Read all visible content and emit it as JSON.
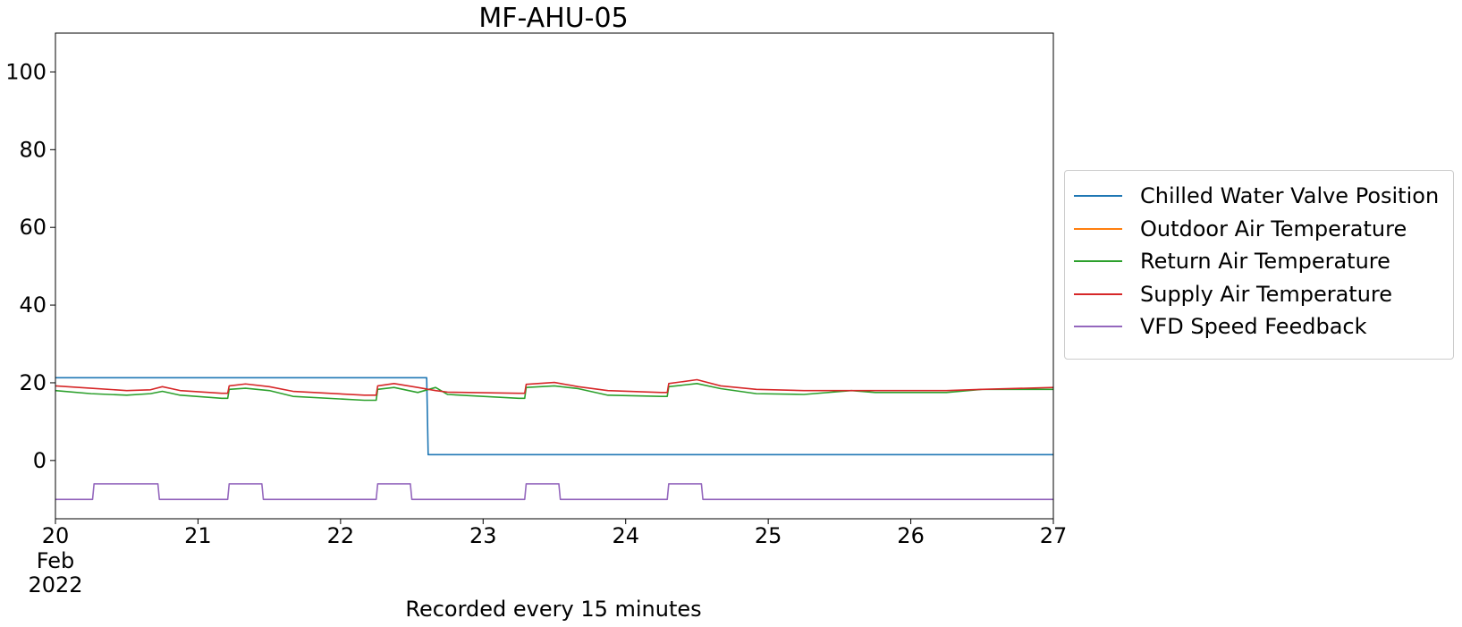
{
  "chart_data": {
    "type": "line",
    "title": "MF-AHU-05",
    "xlabel": "Recorded every 15 minutes",
    "ylabel": "",
    "x_range": [
      "2022-02-20",
      "2022-02-27"
    ],
    "ylim": [
      -15,
      110
    ],
    "x_ticks": [
      {
        "label": "20",
        "date": "2022-02-20",
        "sublabels": [
          "Feb",
          "2022"
        ]
      },
      {
        "label": "21",
        "date": "2022-02-21"
      },
      {
        "label": "22",
        "date": "2022-02-22"
      },
      {
        "label": "23",
        "date": "2022-02-23"
      },
      {
        "label": "24",
        "date": "2022-02-24"
      },
      {
        "label": "25",
        "date": "2022-02-25"
      },
      {
        "label": "26",
        "date": "2022-02-26"
      },
      {
        "label": "27",
        "date": "2022-02-27"
      }
    ],
    "y_ticks": [
      0,
      20,
      40,
      60,
      80,
      100
    ],
    "grid": false,
    "legend_position": "right-outside",
    "series": [
      {
        "name": "Chilled Water Valve Position",
        "color": "#1f77b4",
        "points": [
          [
            "2022-02-20 00:00",
            21.3
          ],
          [
            "2022-02-22 14:30",
            21.3
          ],
          [
            "2022-02-22 14:45",
            1.5
          ],
          [
            "2022-02-27 00:00",
            1.5
          ]
        ]
      },
      {
        "name": "Outdoor Air Temperature",
        "color": "#ff7f0e",
        "points": []
      },
      {
        "name": "Return Air Temperature",
        "color": "#2ca02c",
        "points": [
          [
            "2022-02-20 00:00",
            18.0
          ],
          [
            "2022-02-20 06:00",
            17.2
          ],
          [
            "2022-02-20 12:00",
            16.8
          ],
          [
            "2022-02-20 16:00",
            17.2
          ],
          [
            "2022-02-20 18:00",
            17.8
          ],
          [
            "2022-02-20 21:00",
            16.8
          ],
          [
            "2022-02-21 04:00",
            16.0
          ],
          [
            "2022-02-21 05:00",
            16.0
          ],
          [
            "2022-02-21 05:15",
            18.3
          ],
          [
            "2022-02-21 08:00",
            18.6
          ],
          [
            "2022-02-21 12:00",
            18.0
          ],
          [
            "2022-02-21 16:00",
            16.5
          ],
          [
            "2022-02-22 04:00",
            15.5
          ],
          [
            "2022-02-22 06:00",
            15.5
          ],
          [
            "2022-02-22 06:15",
            18.3
          ],
          [
            "2022-02-22 09:00",
            18.8
          ],
          [
            "2022-02-22 13:00",
            17.5
          ],
          [
            "2022-02-22 16:00",
            18.8
          ],
          [
            "2022-02-22 18:00",
            17.0
          ],
          [
            "2022-02-23 06:00",
            16.0
          ],
          [
            "2022-02-23 07:00",
            16.0
          ],
          [
            "2022-02-23 07:15",
            18.8
          ],
          [
            "2022-02-23 12:00",
            19.2
          ],
          [
            "2022-02-23 16:00",
            18.5
          ],
          [
            "2022-02-23 21:00",
            16.8
          ],
          [
            "2022-02-24 06:00",
            16.5
          ],
          [
            "2022-02-24 07:00",
            16.5
          ],
          [
            "2022-02-24 07:15",
            19.0
          ],
          [
            "2022-02-24 12:00",
            19.8
          ],
          [
            "2022-02-24 16:00",
            18.5
          ],
          [
            "2022-02-24 22:00",
            17.2
          ],
          [
            "2022-02-25 06:00",
            17.0
          ],
          [
            "2022-02-25 14:00",
            18.0
          ],
          [
            "2022-02-25 18:00",
            17.5
          ],
          [
            "2022-02-26 06:00",
            17.5
          ],
          [
            "2022-02-26 12:00",
            18.3
          ],
          [
            "2022-02-27 00:00",
            18.3
          ]
        ]
      },
      {
        "name": "Supply Air Temperature",
        "color": "#d62728",
        "points": [
          [
            "2022-02-20 00:00",
            19.2
          ],
          [
            "2022-02-20 06:00",
            18.6
          ],
          [
            "2022-02-20 12:00",
            18.0
          ],
          [
            "2022-02-20 16:00",
            18.2
          ],
          [
            "2022-02-20 18:00",
            19.0
          ],
          [
            "2022-02-20 21:00",
            18.0
          ],
          [
            "2022-02-21 04:00",
            17.3
          ],
          [
            "2022-02-21 05:00",
            17.3
          ],
          [
            "2022-02-21 05:15",
            19.2
          ],
          [
            "2022-02-21 08:00",
            19.7
          ],
          [
            "2022-02-21 12:00",
            19.0
          ],
          [
            "2022-02-21 16:00",
            17.8
          ],
          [
            "2022-02-22 04:00",
            16.8
          ],
          [
            "2022-02-22 06:00",
            16.8
          ],
          [
            "2022-02-22 06:15",
            19.2
          ],
          [
            "2022-02-22 09:00",
            19.8
          ],
          [
            "2022-02-22 13:00",
            18.8
          ],
          [
            "2022-02-22 16:00",
            18.0
          ],
          [
            "2022-02-22 18:00",
            17.6
          ],
          [
            "2022-02-23 06:00",
            17.3
          ],
          [
            "2022-02-23 07:00",
            17.3
          ],
          [
            "2022-02-23 07:15",
            19.6
          ],
          [
            "2022-02-23 12:00",
            20.1
          ],
          [
            "2022-02-23 16:00",
            19.0
          ],
          [
            "2022-02-23 21:00",
            18.0
          ],
          [
            "2022-02-24 06:00",
            17.5
          ],
          [
            "2022-02-24 07:00",
            17.5
          ],
          [
            "2022-02-24 07:15",
            19.8
          ],
          [
            "2022-02-24 12:00",
            20.8
          ],
          [
            "2022-02-24 16:00",
            19.2
          ],
          [
            "2022-02-24 22:00",
            18.3
          ],
          [
            "2022-02-25 06:00",
            18.0
          ],
          [
            "2022-02-25 14:00",
            18.0
          ],
          [
            "2022-02-26 06:00",
            18.0
          ],
          [
            "2022-02-26 12:00",
            18.3
          ],
          [
            "2022-02-27 00:00",
            18.8
          ]
        ]
      },
      {
        "name": "VFD Speed Feedback",
        "color": "#9467bd",
        "points": [
          [
            "2022-02-20 00:00",
            -10
          ],
          [
            "2022-02-20 06:15",
            -10
          ],
          [
            "2022-02-20 06:30",
            -6
          ],
          [
            "2022-02-20 17:15",
            -6
          ],
          [
            "2022-02-20 17:30",
            -10
          ],
          [
            "2022-02-21 05:00",
            -10
          ],
          [
            "2022-02-21 05:15",
            -6
          ],
          [
            "2022-02-21 10:45",
            -6
          ],
          [
            "2022-02-21 11:00",
            -10
          ],
          [
            "2022-02-22 06:00",
            -10
          ],
          [
            "2022-02-22 06:15",
            -6
          ],
          [
            "2022-02-22 11:45",
            -6
          ],
          [
            "2022-02-22 12:00",
            -10
          ],
          [
            "2022-02-23 07:00",
            -10
          ],
          [
            "2022-02-23 07:15",
            -6
          ],
          [
            "2022-02-23 12:45",
            -6
          ],
          [
            "2022-02-23 13:00",
            -10
          ],
          [
            "2022-02-24 07:00",
            -10
          ],
          [
            "2022-02-24 07:15",
            -6
          ],
          [
            "2022-02-24 12:45",
            -6
          ],
          [
            "2022-02-24 13:00",
            -10
          ],
          [
            "2022-02-27 00:00",
            -10
          ]
        ]
      }
    ]
  }
}
